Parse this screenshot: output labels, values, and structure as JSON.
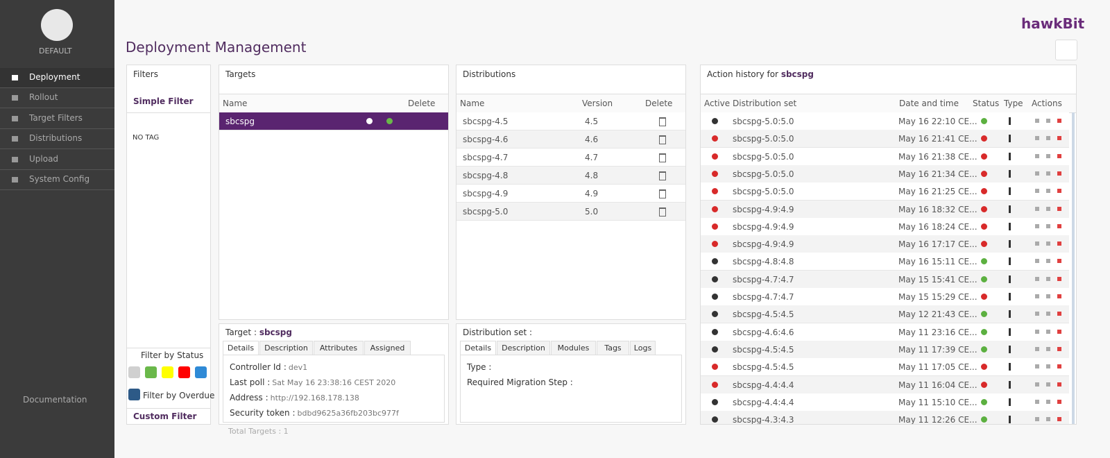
{
  "sidebar": {
    "user": "DEFAULT",
    "menu": [
      "Deployment",
      "Rollout",
      "Target Filters",
      "Distributions",
      "Upload",
      "System Config"
    ],
    "documentation": "Documentation"
  },
  "header": {
    "title": "Deployment Management",
    "logo": "hawkBit"
  },
  "filters": {
    "title": "Filters",
    "simple_filter": "Simple Filter",
    "no_tag": "NO TAG",
    "filter_by_status": "Filter by Status",
    "status_colors": [
      "#d0d0d0",
      "#6ab84a",
      "#ffff00",
      "#ff0000",
      "#2f8ad6"
    ],
    "overdue_color": "#2d5a87",
    "filter_by_overdue": "Filter by Overdue",
    "custom_filter": "Custom Filter"
  },
  "targets": {
    "title": "Targets",
    "columns": [
      "Name",
      "Delete"
    ],
    "rows": [
      "sbcspg"
    ]
  },
  "target_details": {
    "title": "Target :",
    "name": "sbcspg",
    "tabs": [
      "Details",
      "Description",
      "Attributes",
      "Assigned"
    ],
    "fields": [
      {
        "label": "Controller Id :",
        "value": "dev1"
      },
      {
        "label": "Last poll :",
        "value": "Sat May 16 23:38:16 CEST 2020"
      },
      {
        "label": "Address :",
        "value": "http://192.168.178.138"
      },
      {
        "label": "Security token :",
        "value": "bdbd9625a36fb203bc977f"
      }
    ],
    "total": "Total Targets : 1"
  },
  "distributions": {
    "title": "Distributions",
    "columns": [
      "Name",
      "Version",
      "Delete"
    ],
    "rows": [
      [
        "sbcspg-4.5",
        "4.5"
      ],
      [
        "sbcspg-4.6",
        "4.6"
      ],
      [
        "sbcspg-4.7",
        "4.7"
      ],
      [
        "sbcspg-4.8",
        "4.8"
      ],
      [
        "sbcspg-4.9",
        "4.9"
      ],
      [
        "sbcspg-5.0",
        "5.0"
      ]
    ]
  },
  "distribution_set": {
    "title": "Distribution set :",
    "tabs": [
      "Details",
      "Description",
      "Modules",
      "Tags",
      "Logs"
    ],
    "fields": [
      "Type :",
      "Required Migration Step :"
    ]
  },
  "action_history": {
    "title": "Action history for",
    "target": "sbcspg",
    "columns": [
      "Active",
      "Distribution set",
      "Date and time",
      "Status",
      "Type",
      "Actions"
    ],
    "rows": [
      {
        "active": true,
        "set": "sbcspg-5.0:5.0",
        "date": "May 16 22:10 CE...",
        "ok": true
      },
      {
        "active": false,
        "set": "sbcspg-5.0:5.0",
        "date": "May 16 21:41 CE...",
        "ok": false
      },
      {
        "active": false,
        "set": "sbcspg-5.0:5.0",
        "date": "May 16 21:38 CE...",
        "ok": false
      },
      {
        "active": false,
        "set": "sbcspg-5.0:5.0",
        "date": "May 16 21:34 CE...",
        "ok": false
      },
      {
        "active": false,
        "set": "sbcspg-5.0:5.0",
        "date": "May 16 21:25 CE...",
        "ok": false
      },
      {
        "active": false,
        "set": "sbcspg-4.9:4.9",
        "date": "May 16 18:32 CE...",
        "ok": false
      },
      {
        "active": false,
        "set": "sbcspg-4.9:4.9",
        "date": "May 16 18:24 CE...",
        "ok": false
      },
      {
        "active": false,
        "set": "sbcspg-4.9:4.9",
        "date": "May 16 17:17 CE...",
        "ok": false
      },
      {
        "active": true,
        "set": "sbcspg-4.8:4.8",
        "date": "May 16 15:11 CE...",
        "ok": true
      },
      {
        "active": true,
        "set": "sbcspg-4.7:4.7",
        "date": "May 15 15:41 CE...",
        "ok": true
      },
      {
        "active": true,
        "set": "sbcspg-4.7:4.7",
        "date": "May 15 15:29 CE...",
        "ok": false
      },
      {
        "active": true,
        "set": "sbcspg-4.5:4.5",
        "date": "May 12 21:43 CE...",
        "ok": true
      },
      {
        "active": true,
        "set": "sbcspg-4.6:4.6",
        "date": "May 11 23:16 CE...",
        "ok": true
      },
      {
        "active": true,
        "set": "sbcspg-4.5:4.5",
        "date": "May 11 17:39 CE...",
        "ok": true
      },
      {
        "active": false,
        "set": "sbcspg-4.5:4.5",
        "date": "May 11 17:05 CE...",
        "ok": false
      },
      {
        "active": false,
        "set": "sbcspg-4.4:4.4",
        "date": "May 11 16:04 CE...",
        "ok": false
      },
      {
        "active": true,
        "set": "sbcspg-4.4:4.4",
        "date": "May 11 15:10 CE...",
        "ok": true
      },
      {
        "active": true,
        "set": "sbcspg-4.3:4.3",
        "date": "May 11 12:26 CE...",
        "ok": true
      }
    ]
  }
}
